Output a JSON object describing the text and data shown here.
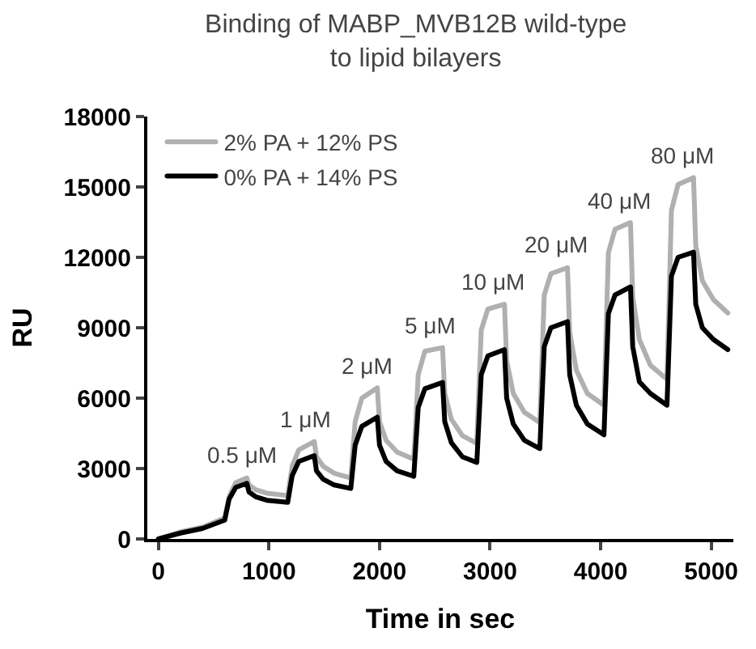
{
  "chart_data": {
    "type": "line",
    "title": "Binding of MABP_MVB12B wild-type\nto lipid bilayers",
    "xlabel": "Time in sec",
    "ylabel": "RU",
    "x": [
      0,
      200,
      400,
      600,
      640,
      700,
      800,
      820,
      880,
      980,
      1170,
      1210,
      1270,
      1410,
      1430,
      1490,
      1590,
      1740,
      1780,
      1840,
      1980,
      2000,
      2060,
      2160,
      2310,
      2350,
      2410,
      2570,
      2590,
      2650,
      2750,
      2880,
      2920,
      2980,
      3130,
      3150,
      3210,
      3310,
      3450,
      3490,
      3550,
      3700,
      3720,
      3780,
      3880,
      4030,
      4070,
      4130,
      4270,
      4290,
      4350,
      4450,
      4600,
      4640,
      4700,
      4840,
      4860,
      4920,
      5020,
      5150
    ],
    "series": [
      {
        "name": "2% PA + 12% PS",
        "color": "#b0b0b0",
        "values": [
          0,
          300,
          500,
          900,
          1800,
          2400,
          2600,
          2300,
          2100,
          1950,
          1850,
          3100,
          3800,
          4150,
          3500,
          3100,
          2800,
          2600,
          5000,
          6000,
          6440,
          5000,
          4200,
          3700,
          3400,
          7000,
          8000,
          8150,
          6200,
          5100,
          4400,
          4070,
          8900,
          9800,
          10000,
          7600,
          6200,
          5400,
          4960,
          10400,
          11300,
          11560,
          8800,
          7200,
          6200,
          5700,
          12200,
          13200,
          13480,
          10300,
          8500,
          7400,
          6800,
          14000,
          15100,
          15400,
          12500,
          11000,
          10200,
          9630
        ]
      },
      {
        "name": "0% PA + 14% PS",
        "color": "#000000",
        "values": [
          0,
          250,
          450,
          800,
          1700,
          2200,
          2370,
          2000,
          1800,
          1650,
          1560,
          2700,
          3300,
          3550,
          2900,
          2550,
          2300,
          2150,
          4000,
          4800,
          5190,
          4000,
          3300,
          2900,
          2670,
          5600,
          6400,
          6670,
          5000,
          4100,
          3500,
          3260,
          7000,
          7800,
          8070,
          6000,
          4900,
          4200,
          3850,
          8200,
          9000,
          9260,
          7000,
          5700,
          4900,
          4440,
          9600,
          10400,
          10740,
          8200,
          6700,
          6200,
          5700,
          11200,
          12000,
          12220,
          10000,
          9000,
          8500,
          8070
        ]
      }
    ],
    "annotations": [
      {
        "text": "0.5 μM",
        "x": 760,
        "y": 2600
      },
      {
        "text": "1 μM",
        "x": 1330,
        "y": 4150
      },
      {
        "text": "2 μM",
        "x": 1880,
        "y": 6440
      },
      {
        "text": "5 μM",
        "x": 2460,
        "y": 8150
      },
      {
        "text": "10 μM",
        "x": 3030,
        "y": 10000
      },
      {
        "text": "20 μM",
        "x": 3600,
        "y": 11560
      },
      {
        "text": "40 μM",
        "x": 4170,
        "y": 13480
      },
      {
        "text": "80 μM",
        "x": 4740,
        "y": 15400
      }
    ],
    "xlim": [
      -100,
      5200
    ],
    "xticks": [
      0,
      1000,
      2000,
      3000,
      4000,
      5000
    ],
    "ylim": [
      0,
      18000
    ],
    "yticks": [
      0,
      3000,
      6000,
      9000,
      12000,
      15000,
      18000
    ],
    "legend": "top left",
    "marker": "none",
    "line_style": "solid"
  }
}
